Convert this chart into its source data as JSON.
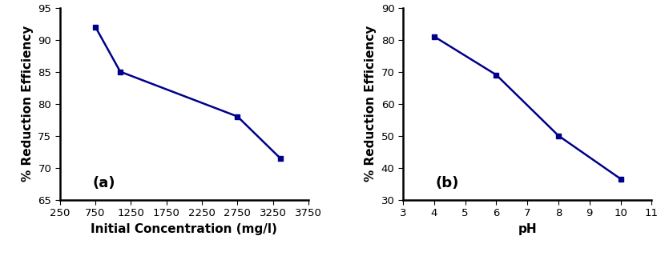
{
  "plot_a": {
    "x": [
      750,
      1100,
      2750,
      3350
    ],
    "y": [
      92,
      85,
      78,
      71.5
    ],
    "xlabel": "Initial Concentration (mg/l)",
    "ylabel": "% Reduction Efficiency",
    "xlim": [
      250,
      3750
    ],
    "ylim": [
      65,
      95
    ],
    "xticks": [
      250,
      750,
      1250,
      1750,
      2250,
      2750,
      3250,
      3750
    ],
    "yticks": [
      65,
      70,
      75,
      80,
      85,
      90,
      95
    ],
    "label": "(a)"
  },
  "plot_b": {
    "x": [
      4,
      6,
      8,
      10
    ],
    "y": [
      81,
      69,
      50,
      36.5
    ],
    "xlabel": "pH",
    "ylabel": "% Reduction Efficiency",
    "xlim": [
      3,
      11
    ],
    "ylim": [
      30,
      90
    ],
    "xticks": [
      3,
      4,
      5,
      6,
      7,
      8,
      9,
      10,
      11
    ],
    "yticks": [
      30,
      40,
      50,
      60,
      70,
      80,
      90
    ],
    "label": "(b)"
  },
  "line_color": "#00008B",
  "marker": "s",
  "markersize": 5,
  "linewidth": 1.8,
  "label_fontsize": 11,
  "tick_fontsize": 9.5,
  "annot_fontsize": 13
}
